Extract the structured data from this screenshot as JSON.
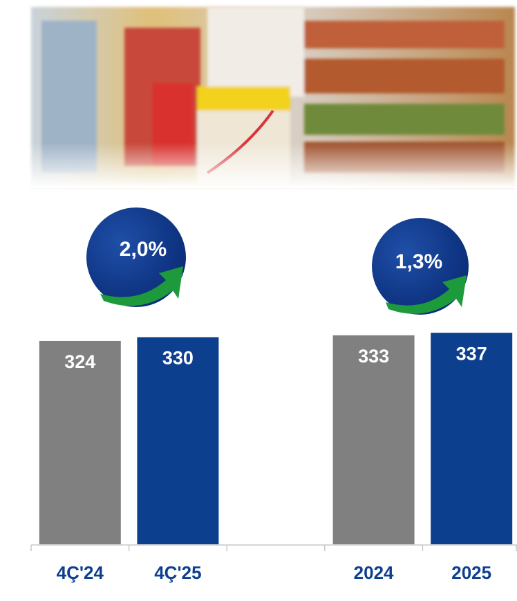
{
  "chart_data": {
    "type": "bar",
    "categories": [
      "4Ç'24",
      "4Ç'25",
      null,
      "2024",
      "2025"
    ],
    "values": [
      324,
      330,
      null,
      333,
      337
    ],
    "colors": [
      "#808080",
      "#0d3f8f",
      null,
      "#808080",
      "#0d3f8f"
    ],
    "ylim": [
      0,
      400
    ],
    "annotations": [
      {
        "text": "2,0%"
      },
      {
        "text": "1,3%"
      }
    ]
  }
}
